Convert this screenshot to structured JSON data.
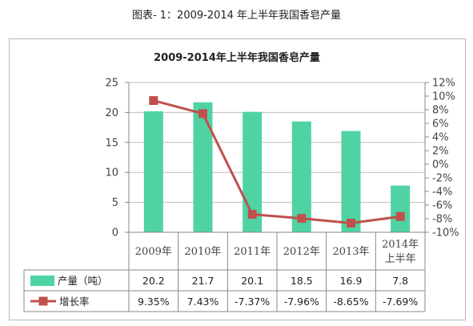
{
  "figure_title": "图表- 1：2009-2014 年上半年我国香皂产量",
  "chart_data": {
    "type": "bar",
    "title": "2009-2014年上半年我国香皂产量",
    "categories": [
      "2009年",
      "2010年",
      "2011年",
      "2012年",
      "2013年",
      "2014年上半年"
    ],
    "series": [
      {
        "name": "产量（吨）",
        "type": "bar",
        "axis": "left",
        "color": "#4fd3a3",
        "values": [
          20.2,
          21.7,
          20.1,
          18.5,
          16.9,
          7.8
        ],
        "labels": [
          "20.2",
          "21.7",
          "20.1",
          "18.5",
          "16.9",
          "7.8"
        ]
      },
      {
        "name": "增长率",
        "type": "line",
        "axis": "right",
        "color": "#c0504d",
        "values": [
          9.35,
          7.43,
          -7.37,
          -7.96,
          -8.65,
          -7.69
        ],
        "labels": [
          "9.35%",
          "7.43%",
          "-7.37%",
          "-7.96%",
          "-8.65%",
          "-7.69%"
        ]
      }
    ],
    "ylim_left": [
      0,
      25
    ],
    "yticks_left": [
      "0",
      "5",
      "10",
      "15",
      "20",
      "25"
    ],
    "ylim_right": [
      -10,
      12
    ],
    "yticks_right": [
      "-10%",
      "-8%",
      "-6%",
      "-4%",
      "-2%",
      "0%",
      "2%",
      "4%",
      "6%",
      "8%",
      "10%",
      "12%"
    ],
    "grid": true,
    "legend": "data-table"
  }
}
